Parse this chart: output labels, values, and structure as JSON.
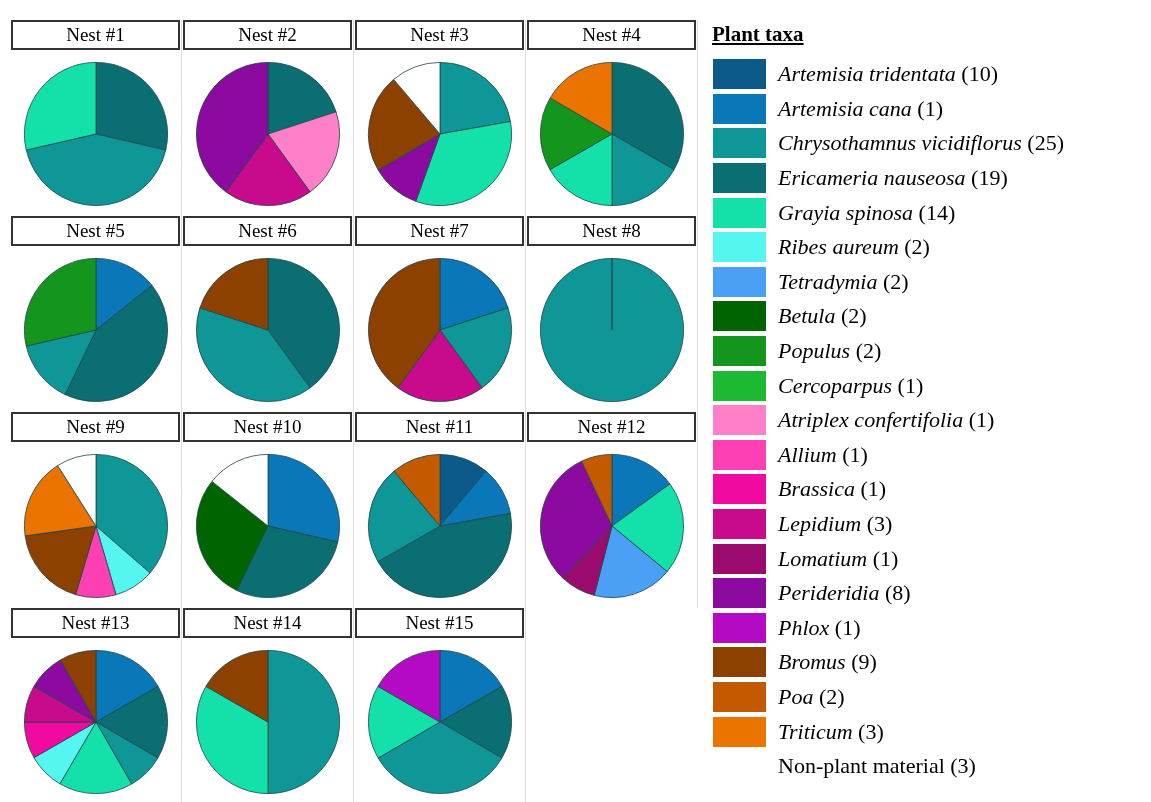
{
  "chart_data": [
    {
      "type": "pie",
      "title": "Nest #1",
      "categories": [
        null,
        null,
        null
      ],
      "values": [
        28.6,
        42.8,
        28.6
      ],
      "colors": [
        "#0a6e73",
        "#0f9696",
        "#14e0aa"
      ]
    },
    {
      "type": "pie",
      "title": "Nest #2",
      "categories": [
        null,
        null,
        null,
        null
      ],
      "values": [
        20,
        20,
        20,
        40
      ],
      "colors": [
        "#0a6e73",
        "#ff80c8",
        "#c80a8c",
        "#8c0aa0"
      ]
    },
    {
      "type": "pie",
      "title": "Nest #3",
      "categories": [
        null,
        null,
        null,
        null,
        null
      ],
      "values": [
        22.2,
        33.3,
        11.1,
        22.2,
        11.2
      ],
      "colors": [
        "#0f9696",
        "#14e0aa",
        "#8c0aa0",
        "#8c4100",
        "#ffffff"
      ]
    },
    {
      "type": "pie",
      "title": "Nest #4",
      "categories": [
        null,
        null,
        null,
        null,
        null
      ],
      "values": [
        33.3,
        16.7,
        16.7,
        16.7,
        16.6
      ],
      "colors": [
        "#0a6e73",
        "#0f9696",
        "#14e0aa",
        "#14961e",
        "#eb7300"
      ]
    },
    {
      "type": "pie",
      "title": "Nest #5",
      "categories": [
        null,
        null,
        null,
        null
      ],
      "values": [
        14.3,
        42.8,
        14.3,
        28.6
      ],
      "colors": [
        "#0a78b8",
        "#0a6e73",
        "#0f9696",
        "#14961e"
      ]
    },
    {
      "type": "pie",
      "title": "Nest #6",
      "categories": [
        null,
        null,
        null
      ],
      "values": [
        40,
        40,
        20
      ],
      "colors": [
        "#0a6e73",
        "#0f9696",
        "#8c4100"
      ]
    },
    {
      "type": "pie",
      "title": "Nest #7",
      "categories": [
        null,
        null,
        null,
        null
      ],
      "values": [
        20,
        20,
        20,
        40
      ],
      "colors": [
        "#0a78b8",
        "#0f9696",
        "#c80a8c",
        "#8c4100"
      ]
    },
    {
      "type": "pie",
      "title": "Nest #8",
      "categories": [
        null
      ],
      "values": [
        100
      ],
      "colors": [
        "#0f9696"
      ]
    },
    {
      "type": "pie",
      "title": "Nest #9",
      "categories": [
        null,
        null,
        null,
        null,
        null,
        null
      ],
      "values": [
        36.4,
        9.1,
        9.1,
        18.2,
        18.2,
        9.0
      ],
      "colors": [
        "#0f9696",
        "#55f5f0",
        "#ff40b4",
        "#8c4100",
        "#eb7300",
        "#ffffff"
      ]
    },
    {
      "type": "pie",
      "title": "Nest #10",
      "categories": [
        null,
        null,
        null,
        null
      ],
      "values": [
        28.6,
        28.6,
        28.5,
        14.3
      ],
      "colors": [
        "#0a78b8",
        "#0a6e73",
        "#006400",
        "#ffffff"
      ]
    },
    {
      "type": "pie",
      "title": "Nest #11",
      "categories": [
        null,
        null,
        null,
        null,
        null
      ],
      "values": [
        11.1,
        11.1,
        44.5,
        22.2,
        11.1
      ],
      "colors": [
        "#0b5a8a",
        "#0a78b8",
        "#0a6e73",
        "#0f9696",
        "#c35a00"
      ]
    },
    {
      "type": "pie",
      "title": "Nest #12",
      "categories": [
        null,
        null,
        null,
        null,
        null,
        null
      ],
      "values": [
        15,
        21,
        18,
        8,
        31,
        7
      ],
      "colors": [
        "#0a78b8",
        "#14e0aa",
        "#4aa0f5",
        "#9b0a6e",
        "#8c0aa0",
        "#c35a00"
      ]
    },
    {
      "type": "pie",
      "title": "Nest #13",
      "categories": [
        null,
        null,
        null,
        null,
        null,
        null,
        null,
        null,
        null
      ],
      "values": [
        16.7,
        16.7,
        8.3,
        16.7,
        8.3,
        8.3,
        8.3,
        8.4,
        8.3
      ],
      "colors": [
        "#0a78b8",
        "#0a6e73",
        "#0f9696",
        "#14e0aa",
        "#55f5f0",
        "#f00aa0",
        "#c80a8c",
        "#8c0aa0",
        "#8c4100"
      ]
    },
    {
      "type": "pie",
      "title": "Nest #14",
      "categories": [
        null,
        null,
        null
      ],
      "values": [
        50,
        33.3,
        16.7
      ],
      "colors": [
        "#0f9696",
        "#14e0aa",
        "#8c4100"
      ]
    },
    {
      "type": "pie",
      "title": "Nest #15",
      "categories": [
        null,
        null,
        null,
        null,
        null
      ],
      "values": [
        16.7,
        16.7,
        33.2,
        16.7,
        16.7
      ],
      "colors": [
        "#0a78b8",
        "#0a6e73",
        "#0f9696",
        "#14e0aa",
        "#b40ac3"
      ]
    },
    {
      "type": "other",
      "title": "Plant taxa",
      "categories": [
        "Artemisia tridentata (10)",
        "Artemisia cana (1)",
        "Chrysothamnus vicidiflorus (25)",
        "Ericameria nauseosa (19)",
        "Grayia spinosa (14)",
        "Ribes aureum (2)",
        "Tetradymia (2)",
        "Betula (2)",
        "Populus (2)",
        "Cercoparpus (1)",
        "Atriplex confertifolia (1)",
        "Allium (1)",
        "Brassica (1)",
        "Lepidium (3)",
        "Lomatium (1)",
        "Perideridia (8)",
        "Phlox (1)",
        "Bromus (9)",
        "Poa (2)",
        "Triticum (3)",
        "Non-plant material (3)"
      ],
      "colors": [
        "#0b5a8a",
        "#0a78b8",
        "#0f9696",
        "#0a6e73",
        "#14e0aa",
        "#55f5f0",
        "#4aa0f5",
        "#006400",
        "#14961e",
        "#1eb932",
        "#ff80c8",
        "#ff40b4",
        "#f00aa0",
        "#c80a8c",
        "#9b0a6e",
        "#8c0aa0",
        "#b40ac3",
        "#8c4100",
        "#c35a00",
        "#eb7300",
        null
      ]
    }
  ]
}
